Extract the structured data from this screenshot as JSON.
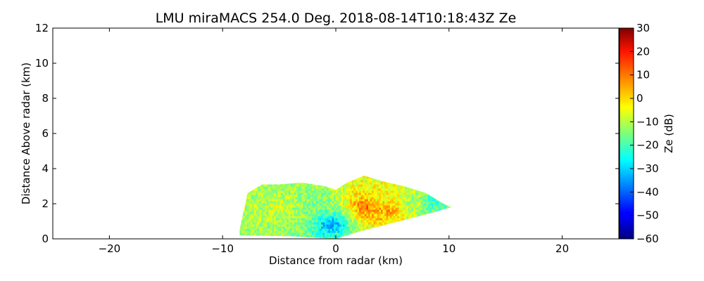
{
  "chart_data": {
    "type": "heatmap",
    "title": "LMU miraMACS 254.0 Deg. 2018-08-14T10:18:43Z  Ze",
    "xlabel": "Distance from radar (km)",
    "ylabel": "Distance Above radar  (km)",
    "xlim": [
      -25,
      25
    ],
    "ylim": [
      0,
      12
    ],
    "x_ticks": [
      -20,
      -10,
      0,
      10,
      20
    ],
    "x_tick_labels": [
      "−20",
      "−10",
      "0",
      "10",
      "20"
    ],
    "y_ticks": [
      0,
      2,
      4,
      6,
      8,
      10,
      12
    ],
    "y_tick_labels": [
      "0",
      "2",
      "4",
      "6",
      "8",
      "10",
      "12"
    ],
    "colorbar": {
      "label": "Ze (dB)",
      "range": [
        -60,
        30
      ],
      "colormap": "jet",
      "ticks": [
        30,
        20,
        10,
        0,
        -10,
        -20,
        -30,
        -40,
        -50,
        -60
      ],
      "tick_labels": [
        "30",
        "20",
        "10",
        "0",
        "−10",
        "−20",
        "−30",
        "−40",
        "−50",
        "−60"
      ]
    },
    "echo": {
      "x_range_km": [
        -8.5,
        10.2
      ],
      "max_height_km": 3.6,
      "cloud_top_profile_km": [
        [
          -8.5,
          0.5
        ],
        [
          -7.8,
          2.6
        ],
        [
          -6.5,
          3.1
        ],
        [
          -5.0,
          3.1
        ],
        [
          -3.0,
          3.2
        ],
        [
          -1.0,
          3.0
        ],
        [
          0.0,
          2.8
        ],
        [
          1.0,
          3.2
        ],
        [
          2.5,
          3.6
        ],
        [
          4.0,
          3.3
        ],
        [
          6.0,
          3.0
        ],
        [
          8.0,
          2.6
        ],
        [
          9.5,
          2.0
        ],
        [
          10.2,
          1.8
        ]
      ],
      "lower_boundary_profile_km": [
        [
          -8.5,
          0.2
        ],
        [
          -4.0,
          0.15
        ],
        [
          0.0,
          0.0
        ],
        [
          2.0,
          0.4
        ],
        [
          5.0,
          0.9
        ],
        [
          8.0,
          1.4
        ],
        [
          10.2,
          1.8
        ]
      ],
      "ze_cells_dB": [
        {
          "x": -5.0,
          "y": 1.6,
          "value": -8
        },
        {
          "x": -3.5,
          "y": 1.2,
          "value": -12
        },
        {
          "x": -1.5,
          "y": 2.0,
          "value": -15
        },
        {
          "x": -0.5,
          "y": 0.8,
          "value": -35
        },
        {
          "x": 2.5,
          "y": 1.8,
          "value": 10
        },
        {
          "x": 3.5,
          "y": 2.6,
          "value": -5
        },
        {
          "x": 4.5,
          "y": 1.6,
          "value": 5
        },
        {
          "x": 6.5,
          "y": 2.0,
          "value": -10
        },
        {
          "x": 8.5,
          "y": 2.0,
          "value": -22
        }
      ]
    }
  }
}
